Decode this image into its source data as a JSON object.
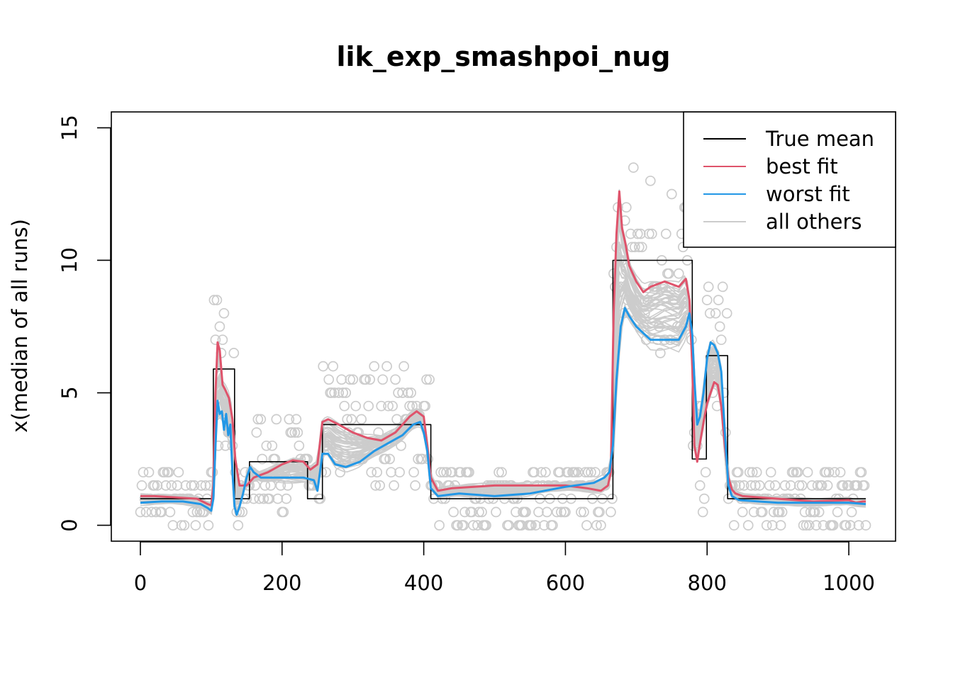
{
  "chart_data": {
    "type": "line",
    "title": "lik_exp_smashpoi_nug",
    "xlabel": "",
    "ylabel": "x(median of all runs)",
    "xlim": [
      -41,
      1066
    ],
    "ylim": [
      -0.6,
      15.6
    ],
    "xticks": [
      0,
      200,
      400,
      600,
      800,
      1000
    ],
    "yticks": [
      0,
      5,
      10,
      15
    ],
    "xtick_labels": [
      "0",
      "200",
      "400",
      "600",
      "800",
      "1000"
    ],
    "ytick_labels": [
      "0",
      "5",
      "10",
      "15"
    ],
    "grid": false,
    "legend_position": "top-right",
    "colors": {
      "true_mean": "#000000",
      "best_fit": "#DF536B",
      "worst_fit": "#2297E6",
      "all_others": "#CCCCCC"
    },
    "legend": [
      {
        "label": "True mean",
        "color": "#000000"
      },
      {
        "label": "best fit",
        "color": "#DF536B"
      },
      {
        "label": "worst fit",
        "color": "#2297E6"
      },
      {
        "label": "all others",
        "color": "#CCCCCC"
      }
    ],
    "true_mean": {
      "x": [
        0,
        103,
        103,
        133,
        133,
        154,
        154,
        236,
        236,
        257,
        257,
        410,
        410,
        667,
        667,
        779,
        779,
        799,
        799,
        829,
        829,
        1024
      ],
      "y": [
        1,
        1,
        5.9,
        5.9,
        1,
        1,
        2.4,
        2.4,
        1,
        1,
        3.8,
        3.8,
        1,
        1,
        10,
        10,
        2.5,
        2.5,
        6.4,
        6.4,
        1,
        1
      ]
    },
    "best_fit": {
      "x": [
        0,
        20,
        50,
        80,
        95,
        100,
        103,
        106,
        109,
        112,
        116,
        120,
        125,
        130,
        134,
        140,
        150,
        160,
        180,
        200,
        215,
        230,
        240,
        250,
        257,
        265,
        280,
        300,
        320,
        340,
        360,
        380,
        390,
        400,
        405,
        410,
        420,
        440,
        500,
        550,
        600,
        630,
        650,
        660,
        664,
        668,
        672,
        676,
        680,
        685,
        690,
        700,
        710,
        720,
        740,
        760,
        770,
        775,
        779,
        782,
        786,
        790,
        795,
        800,
        805,
        810,
        815,
        820,
        825,
        830,
        835,
        840,
        850,
        900,
        950,
        1000,
        1010,
        1020,
        1024
      ],
      "y": [
        1.1,
        1.1,
        1.05,
        1.0,
        0.8,
        0.75,
        1.5,
        5.0,
        6.9,
        6.6,
        5.3,
        5.1,
        4.8,
        4.0,
        2.5,
        1.5,
        1.5,
        1.8,
        2.0,
        2.3,
        2.45,
        2.4,
        2.1,
        2.3,
        3.9,
        4.0,
        3.8,
        3.5,
        3.3,
        3.2,
        3.5,
        4.1,
        4.3,
        4.1,
        3.0,
        1.8,
        1.3,
        1.4,
        1.5,
        1.5,
        1.5,
        1.4,
        1.3,
        1.5,
        2.0,
        8.0,
        11.0,
        12.6,
        11.2,
        10.6,
        9.8,
        9.2,
        8.8,
        9.0,
        9.2,
        9.0,
        9.3,
        8.5,
        6.0,
        3.0,
        2.4,
        3.1,
        3.9,
        4.6,
        5.0,
        5.4,
        5.3,
        4.5,
        3.0,
        1.8,
        1.35,
        1.2,
        1.1,
        1.0,
        0.9,
        0.95,
        0.85,
        0.9,
        0.9
      ]
    },
    "worst_fit": {
      "x": [
        0,
        30,
        60,
        85,
        95,
        100,
        103,
        106,
        109,
        112,
        115,
        118,
        121,
        124,
        127,
        130,
        133,
        136,
        140,
        145,
        150,
        155,
        160,
        170,
        200,
        230,
        245,
        250,
        257,
        265,
        275,
        290,
        310,
        330,
        350,
        370,
        385,
        395,
        400,
        405,
        410,
        420,
        450,
        500,
        550,
        600,
        640,
        655,
        662,
        667,
        672,
        678,
        684,
        690,
        700,
        720,
        740,
        760,
        770,
        775,
        779,
        782,
        786,
        790,
        795,
        800,
        805,
        810,
        815,
        820,
        825,
        830,
        835,
        845,
        900,
        1000,
        1024
      ],
      "y": [
        0.85,
        0.9,
        0.9,
        0.8,
        0.65,
        0.55,
        1.0,
        3.0,
        4.7,
        4.2,
        4.3,
        3.6,
        4.2,
        3.4,
        3.8,
        2.0,
        0.7,
        0.4,
        0.7,
        1.2,
        1.8,
        2.2,
        2.0,
        1.8,
        1.8,
        1.8,
        1.7,
        1.3,
        2.7,
        2.7,
        2.3,
        2.2,
        2.4,
        2.8,
        3.1,
        3.4,
        3.8,
        3.9,
        3.5,
        2.8,
        1.4,
        1.1,
        1.2,
        1.1,
        1.2,
        1.45,
        1.6,
        1.8,
        2.0,
        3.0,
        5.5,
        7.5,
        8.2,
        7.9,
        7.5,
        7.0,
        7.0,
        7.0,
        7.5,
        8.0,
        7.2,
        5.5,
        3.8,
        4.1,
        5.0,
        6.3,
        6.9,
        6.8,
        6.5,
        5.8,
        3.5,
        1.5,
        1.1,
        0.95,
        0.85,
        0.85,
        0.8
      ]
    },
    "all_others_count": 50,
    "observed_points_shown": true
  }
}
